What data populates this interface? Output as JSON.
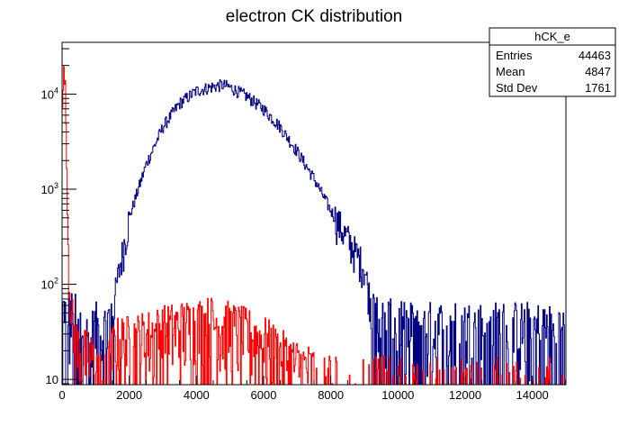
{
  "chart_data": {
    "type": "line",
    "title": "electron CK distribution",
    "xlabel": "",
    "ylabel": "",
    "xlim": [
      0,
      15000
    ],
    "ylim": [
      8.8,
      35000
    ],
    "yscale": "log",
    "grid": false,
    "x_ticks": [
      0,
      2000,
      4000,
      6000,
      8000,
      10000,
      12000,
      14000
    ],
    "y_ticks": [
      {
        "value": 10,
        "base": "10",
        "exp": ""
      },
      {
        "value": 100,
        "base": "10",
        "exp": "2"
      },
      {
        "value": 1000,
        "base": "10",
        "exp": "3"
      },
      {
        "value": 10000,
        "base": "10",
        "exp": "4"
      }
    ],
    "series": [
      {
        "color": "#000080",
        "x": [
          0,
          300,
          500,
          800,
          1000,
          1200,
          1500,
          1700,
          2000,
          2500,
          3000,
          3500,
          4000,
          4500,
          4800,
          5000,
          5500,
          6000,
          6500,
          7000,
          7500,
          8000,
          8500,
          9000,
          9200,
          9500,
          10000,
          11000,
          12000,
          13000,
          14000,
          15000
        ],
        "values": [
          60,
          45,
          40,
          25,
          35,
          30,
          50,
          140,
          500,
          1800,
          4500,
          8000,
          10800,
          12000,
          12500,
          11800,
          9500,
          7000,
          4500,
          2500,
          1300,
          600,
          300,
          150,
          60,
          40,
          35,
          35,
          35,
          35,
          35,
          30
        ]
      },
      {
        "color": "#ff0000",
        "x": [
          0,
          50,
          100,
          150,
          200,
          300,
          400,
          500,
          700,
          900,
          1100,
          1300,
          1500,
          1700,
          2000,
          2500,
          3000,
          3500,
          4000,
          4500,
          5000,
          5500,
          6000,
          6500,
          7000,
          7500,
          8000,
          8500,
          9000,
          10000,
          12000,
          15000
        ],
        "values": [
          5000,
          18000,
          12000,
          1000,
          120,
          40,
          25,
          20,
          18,
          16,
          12,
          10,
          20,
          25,
          25,
          28,
          32,
          35,
          38,
          40,
          35,
          30,
          25,
          18,
          14,
          12,
          10,
          10,
          10,
          9,
          9,
          9
        ]
      }
    ]
  },
  "stats_box": {
    "name": "hCK_e",
    "rows": [
      {
        "label": "Entries",
        "value": "44463"
      },
      {
        "label": "Mean",
        "value": "4847"
      },
      {
        "label": "Std Dev",
        "value": "1761"
      }
    ]
  }
}
